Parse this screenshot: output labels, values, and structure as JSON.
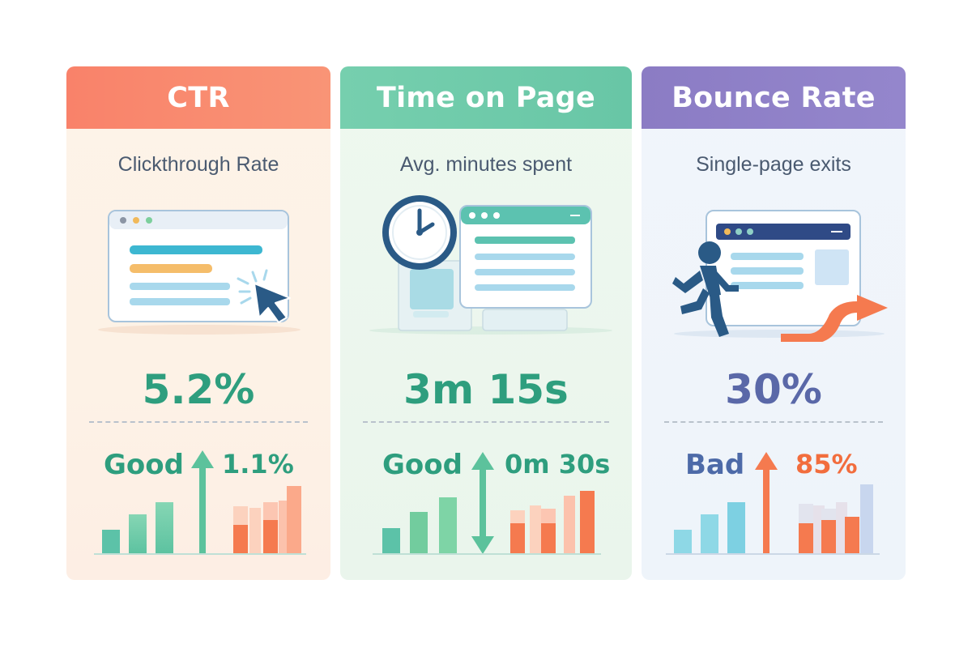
{
  "cards": [
    {
      "id": "ctr",
      "title": "CTR",
      "subtitle": "Clickthrough Rate",
      "metric": "5.2%",
      "rating": "Good",
      "delta": "1.1%",
      "trend": "up",
      "colors": {
        "header": "#f9826a",
        "metric": "#2e9e7e",
        "rating": "#2e9e7e",
        "delta": "#2e9e7e"
      },
      "illustration": "browser-window-with-cursor-click"
    },
    {
      "id": "time",
      "title": "Time on Page",
      "subtitle": "Avg. minutes spent",
      "metric": "3m 15s",
      "rating": "Good",
      "delta": "0m 30s",
      "trend": "up-down",
      "colors": {
        "header": "#76cfae",
        "metric": "#2e9e7e",
        "rating": "#2e9e7e",
        "delta": "#2e9e7e"
      },
      "illustration": "clock-and-browser-window"
    },
    {
      "id": "bounce",
      "title": "Bounce Rate",
      "subtitle": "Single-page exits",
      "metric": "30%",
      "rating": "Bad",
      "delta": "85%",
      "trend": "up",
      "colors": {
        "header": "#8b7cc4",
        "metric": "#5a68a8",
        "rating": "#4d6aa8",
        "delta": "#f26d3d"
      },
      "illustration": "person-running-away-from-browser"
    }
  ]
}
